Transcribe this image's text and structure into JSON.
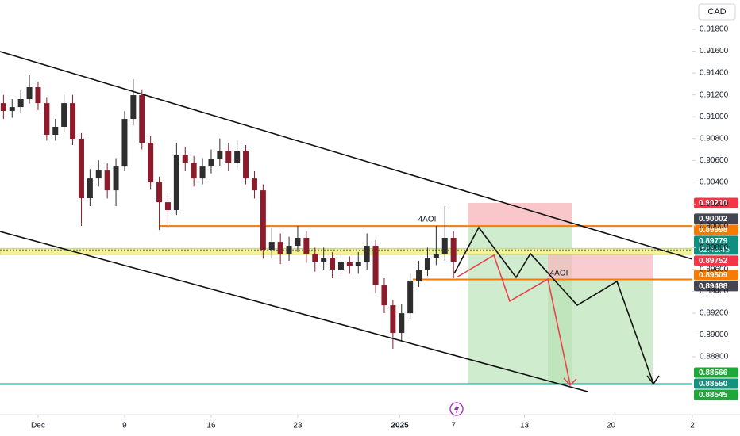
{
  "chart_data": {
    "type": "candlestick",
    "currency": "CAD",
    "x": [
      -2,
      -1.5,
      -1,
      -0.5,
      0,
      0.5,
      1,
      1.5,
      2,
      2.5,
      3,
      3.5,
      4,
      4.5,
      5,
      5.5,
      6,
      6.5,
      7,
      7.5,
      8,
      8.5,
      9,
      9.5,
      10,
      10.5,
      11,
      11.5,
      12,
      12.5,
      13,
      13.5,
      14,
      14.5,
      15,
      15.5,
      16,
      16.5,
      17,
      17.5,
      18,
      18.5,
      19,
      19.5,
      20,
      20.5,
      21,
      21.5,
      22,
      22.5,
      23,
      23.5,
      24
    ],
    "open": [
      0.91124,
      0.91052,
      0.91088,
      0.91161,
      0.9127,
      0.91124,
      0.90834,
      0.90907,
      0.91124,
      0.90798,
      0.90253,
      0.90434,
      0.90507,
      0.90325,
      0.90543,
      0.90979,
      0.91197,
      0.90761,
      0.90398,
      0.90216,
      0.90144,
      0.90652,
      0.9058,
      0.90434,
      0.90543,
      0.90616,
      0.90689,
      0.9058,
      0.90689,
      0.90434,
      0.90325,
      0.89781,
      0.89853,
      0.89744,
      0.89817,
      0.8989,
      0.89744,
      0.89672,
      0.89708,
      0.89599,
      0.89672,
      0.89635,
      0.89672,
      0.89817,
      0.89454,
      0.89272,
      0.89018,
      0.89199,
      0.8949,
      0.89599,
      0.89708,
      0.89744,
      0.8989
    ],
    "high": [
      0.912,
      0.9116,
      0.9124,
      0.91379,
      0.9132,
      0.9118,
      0.9098,
      0.912,
      0.912,
      0.9085,
      0.9052,
      0.906,
      0.9058,
      0.9062,
      0.9105,
      0.91342,
      0.9125,
      0.9082,
      0.9045,
      0.903,
      0.9076,
      0.9072,
      0.9064,
      0.9062,
      0.907,
      0.908,
      0.9076,
      0.9078,
      0.9074,
      0.905,
      0.9038,
      0.8998,
      0.8993,
      0.899,
      0.89999,
      0.8995,
      0.898,
      0.898,
      0.8976,
      0.8975,
      0.8972,
      0.8976,
      0.8993,
      0.8987,
      0.8952,
      0.8932,
      0.8928,
      0.8956,
      0.8968,
      0.898,
      0.89999,
      0.9018,
      0.8995
    ],
    "low": [
      0.9098,
      0.9099,
      0.9103,
      0.9112,
      0.9106,
      0.9078,
      0.9078,
      0.9086,
      0.9074,
      0.89999,
      0.9018,
      0.9036,
      0.9025,
      0.9018,
      0.905,
      0.9092,
      0.907,
      0.9033,
      0.89962,
      0.9,
      0.901,
      0.905,
      0.9036,
      0.9038,
      0.9048,
      0.9055,
      0.905,
      0.9052,
      0.9038,
      0.9025,
      0.897,
      0.897,
      0.8965,
      0.8968,
      0.8976,
      0.8966,
      0.8958,
      0.896,
      0.8952,
      0.8954,
      0.8956,
      0.8956,
      0.896,
      0.8938,
      0.892,
      0.88873,
      0.8895,
      0.8915,
      0.8944,
      0.8954,
      0.8964,
      0.8968,
      0.8952
    ],
    "close": [
      0.91052,
      0.91088,
      0.91161,
      0.9127,
      0.91124,
      0.90834,
      0.90907,
      0.91124,
      0.90798,
      0.90253,
      0.90434,
      0.90507,
      0.90325,
      0.90543,
      0.90979,
      0.91197,
      0.90761,
      0.90398,
      0.90216,
      0.90144,
      0.90652,
      0.9058,
      0.90434,
      0.90543,
      0.90616,
      0.90689,
      0.9058,
      0.90689,
      0.90434,
      0.90325,
      0.89781,
      0.89853,
      0.89744,
      0.89817,
      0.8989,
      0.89744,
      0.89672,
      0.89708,
      0.89599,
      0.89672,
      0.89635,
      0.89672,
      0.89817,
      0.89454,
      0.89272,
      0.89018,
      0.89199,
      0.8949,
      0.89599,
      0.89708,
      0.89744,
      0.8989,
      0.89672
    ],
    "up_color": "#2e2e2e",
    "down_color": "#8c1c2c",
    "xlim": [
      -2.2,
      37.8
    ],
    "xticks": [
      {
        "value": 0,
        "label": "Dec"
      },
      {
        "value": 5,
        "label": "9"
      },
      {
        "value": 10,
        "label": "16"
      },
      {
        "value": 15,
        "label": "23"
      },
      {
        "value": 20.9,
        "label": "2025"
      },
      {
        "value": 24,
        "label": "7"
      },
      {
        "value": 28.1,
        "label": "13"
      },
      {
        "value": 33.1,
        "label": "20"
      },
      {
        "value": 37.8,
        "label": "2"
      }
    ],
    "ylim": [
      0.88292,
      0.92069
    ],
    "yticks": [
      {
        "value": 0.918,
        "label": "0.91800"
      },
      {
        "value": 0.916,
        "label": "0.91600"
      },
      {
        "value": 0.914,
        "label": "0.91400"
      },
      {
        "value": 0.912,
        "label": "0.91200"
      },
      {
        "value": 0.91,
        "label": "0.91000"
      },
      {
        "value": 0.908,
        "label": "0.90800"
      },
      {
        "value": 0.906,
        "label": "0.90600"
      },
      {
        "value": 0.904,
        "label": "0.90400"
      },
      {
        "value": 0.902,
        "label": "0.90200"
      },
      {
        "value": 0.9,
        "label": "0.90000"
      },
      {
        "value": 0.898,
        "label": "0.89800"
      },
      {
        "value": 0.896,
        "label": "0.89600"
      },
      {
        "value": 0.894,
        "label": "0.89400"
      },
      {
        "value": 0.892,
        "label": "0.89200"
      },
      {
        "value": 0.89,
        "label": "0.89000"
      },
      {
        "value": 0.888,
        "label": "0.88800"
      }
    ],
    "price_tags": [
      {
        "value": 0.9021,
        "label": "0.90210",
        "color": "#f23645"
      },
      {
        "value": 0.90002,
        "label": "0.90002",
        "color": "#434651"
      },
      {
        "value": 0.89998,
        "label": "0.89998",
        "color": "#f57c00"
      },
      {
        "value": 0.89779,
        "label": "0.89779",
        "color": "#0e8f80"
      },
      {
        "value": 0.89752,
        "label": "0.89752",
        "color": "#f23645"
      },
      {
        "value": 0.89509,
        "label": "0.89509",
        "color": "#f57c00"
      },
      {
        "value": 0.89488,
        "label": "0.89488",
        "color": "#434651"
      },
      {
        "value": 0.88566,
        "label": "0.88566",
        "color": "#1fa83a"
      },
      {
        "value": 0.8855,
        "label": "0.88550",
        "color": "#14917f"
      },
      {
        "value": 0.88545,
        "label": "0.88545",
        "color": "#1fa83a"
      }
    ],
    "countdown": "02:45:45",
    "annotations": [
      {
        "text": "4AOI"
      },
      {
        "text": "4AOI"
      }
    ]
  }
}
